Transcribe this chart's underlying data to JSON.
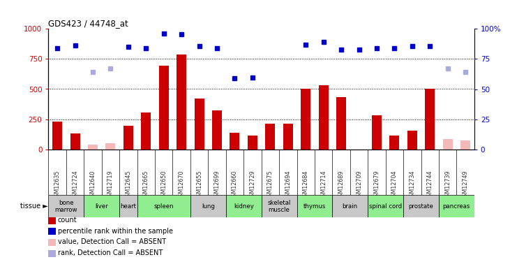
{
  "title": "GDS423 / 44748_at",
  "samples": [
    "GSM12635",
    "GSM12724",
    "GSM12640",
    "GSM12719",
    "GSM12645",
    "GSM12665",
    "GSM12650",
    "GSM12670",
    "GSM12655",
    "GSM12699",
    "GSM12660",
    "GSM12729",
    "GSM12675",
    "GSM12694",
    "GSM12684",
    "GSM12714",
    "GSM12689",
    "GSM12709",
    "GSM12679",
    "GSM12704",
    "GSM12734",
    "GSM12744",
    "GSM12739",
    "GSM12749"
  ],
  "bar_values": [
    230,
    130,
    null,
    null,
    195,
    305,
    695,
    785,
    420,
    325,
    140,
    115,
    215,
    215,
    500,
    530,
    435,
    null,
    285,
    115,
    155,
    505,
    null,
    null
  ],
  "bar_absent": [
    null,
    null,
    40,
    50,
    null,
    null,
    null,
    null,
    null,
    null,
    null,
    null,
    null,
    null,
    null,
    null,
    null,
    null,
    null,
    null,
    null,
    null,
    85,
    75
  ],
  "rank_values": [
    840,
    860,
    null,
    null,
    850,
    840,
    960,
    955,
    855,
    840,
    590,
    595,
    null,
    null,
    870,
    890,
    825,
    830,
    840,
    840,
    855,
    855,
    null,
    null
  ],
  "rank_absent": [
    null,
    null,
    640,
    670,
    null,
    null,
    null,
    null,
    null,
    null,
    null,
    null,
    null,
    null,
    null,
    null,
    null,
    null,
    null,
    null,
    null,
    null,
    670,
    640
  ],
  "tissues": [
    {
      "label": "bone\nmarrow",
      "start": 0,
      "end": 2,
      "color": "#c8c8c8"
    },
    {
      "label": "liver",
      "start": 2,
      "end": 4,
      "color": "#90ee90"
    },
    {
      "label": "heart",
      "start": 4,
      "end": 5,
      "color": "#c8c8c8"
    },
    {
      "label": "spleen",
      "start": 5,
      "end": 8,
      "color": "#90ee90"
    },
    {
      "label": "lung",
      "start": 8,
      "end": 10,
      "color": "#c8c8c8"
    },
    {
      "label": "kidney",
      "start": 10,
      "end": 12,
      "color": "#90ee90"
    },
    {
      "label": "skeletal\nmuscle",
      "start": 12,
      "end": 14,
      "color": "#c8c8c8"
    },
    {
      "label": "thymus",
      "start": 14,
      "end": 16,
      "color": "#90ee90"
    },
    {
      "label": "brain",
      "start": 16,
      "end": 18,
      "color": "#c8c8c8"
    },
    {
      "label": "spinal cord",
      "start": 18,
      "end": 20,
      "color": "#90ee90"
    },
    {
      "label": "prostate",
      "start": 20,
      "end": 22,
      "color": "#c8c8c8"
    },
    {
      "label": "pancreas",
      "start": 22,
      "end": 24,
      "color": "#90ee90"
    }
  ],
  "ylim_left": [
    0,
    1000
  ],
  "ylim_right": [
    0,
    100
  ],
  "yticks_left": [
    0,
    250,
    500,
    750,
    1000
  ],
  "yticks_right": [
    0,
    25,
    50,
    75,
    100
  ],
  "bar_color": "#cc0000",
  "bar_absent_color": "#f5b8b8",
  "rank_color": "#0000cc",
  "rank_absent_color": "#aaaadd",
  "bg_color": "#ffffff",
  "legend_items": [
    {
      "label": "count",
      "color": "#cc0000"
    },
    {
      "label": "percentile rank within the sample",
      "color": "#0000cc"
    },
    {
      "label": "value, Detection Call = ABSENT",
      "color": "#f5b8b8"
    },
    {
      "label": "rank, Detection Call = ABSENT",
      "color": "#aaaadd"
    }
  ]
}
